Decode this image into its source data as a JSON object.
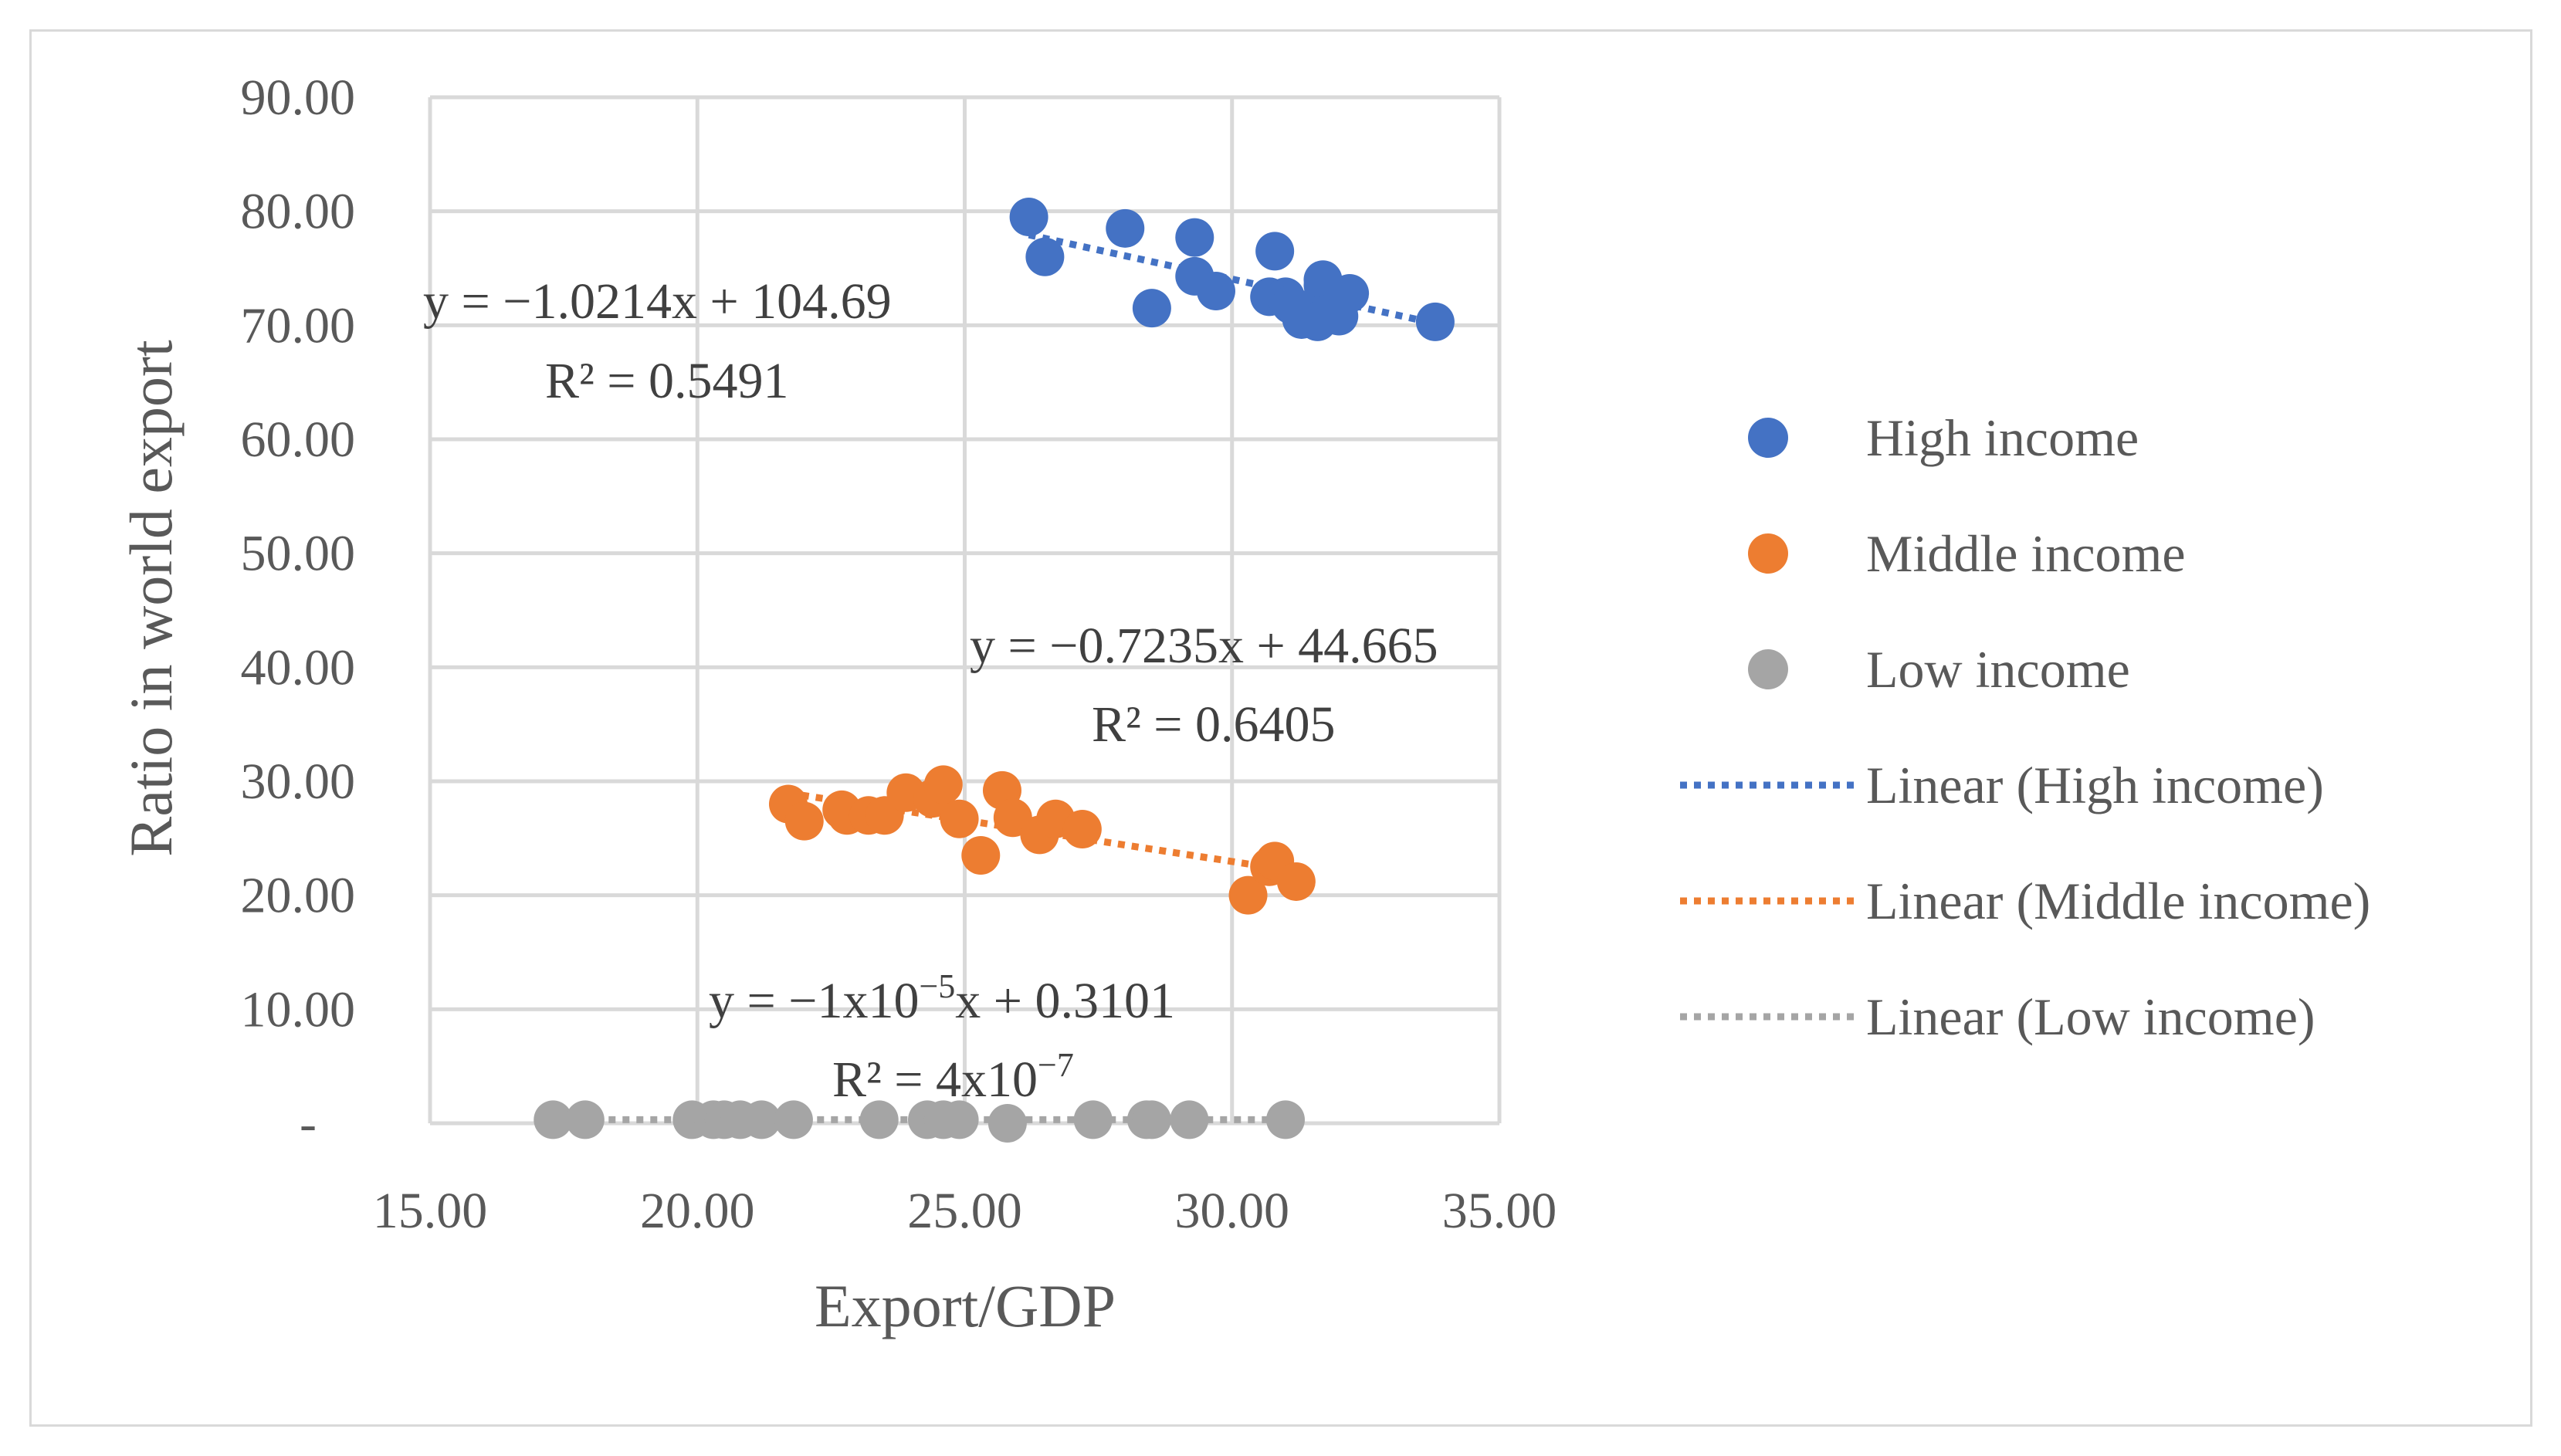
{
  "chart_data": {
    "type": "scatter",
    "title": "",
    "xlabel": "Export/GDP",
    "ylabel": "Ratio in world export",
    "xlim": [
      15,
      35
    ],
    "ylim": [
      0,
      90
    ],
    "grid": true,
    "legend_position": "right",
    "x_ticks": [
      "15.00",
      "20.00",
      "25.00",
      "30.00",
      "35.00"
    ],
    "y_ticks": [
      "-",
      "10.00",
      "20.00",
      "30.00",
      "40.00",
      "50.00",
      "60.00",
      "70.00",
      "80.00",
      "90.00"
    ],
    "series": [
      {
        "name": "High income",
        "color": "#4472c4",
        "x": [
          26.2,
          26.5,
          28.0,
          28.5,
          29.3,
          29.3,
          29.7,
          30.7,
          30.8,
          31.0,
          31.1,
          31.3,
          31.5,
          31.6,
          31.7,
          31.7,
          31.8,
          32.0,
          32.2,
          33.8
        ],
        "y": [
          79.5,
          76.0,
          78.5,
          71.5,
          77.7,
          74.3,
          73.0,
          72.5,
          76.5,
          72.5,
          71.8,
          70.5,
          71.5,
          70.3,
          73.5,
          74.0,
          71.0,
          70.8,
          72.8,
          70.3
        ],
        "trendline": {
          "label": "Linear (High income)",
          "slope": -1.0214,
          "intercept": 104.69,
          "x_range": [
            26.2,
            33.8
          ],
          "equation": "y = −1.0214x + 104.69",
          "r2": "R² = 0.5491"
        }
      },
      {
        "name": "Middle income",
        "color": "#ed7d31",
        "x": [
          21.7,
          22.0,
          22.7,
          22.8,
          23.2,
          23.5,
          23.9,
          24.4,
          24.6,
          24.9,
          25.3,
          25.7,
          25.9,
          26.4,
          26.7,
          27.2,
          30.3,
          30.7,
          30.8,
          31.2
        ],
        "y": [
          28.0,
          26.5,
          27.5,
          27.0,
          27.0,
          27.0,
          29.0,
          28.5,
          29.7,
          26.7,
          23.5,
          29.2,
          26.8,
          25.3,
          26.7,
          25.8,
          20.0,
          22.5,
          23.0,
          21.2
        ],
        "trendline": {
          "label": "Linear (Middle income)",
          "slope": -0.7235,
          "intercept": 44.665,
          "x_range": [
            21.7,
            31.2
          ],
          "equation": "y = −0.7235x + 44.665",
          "r2": "R² = 0.6405"
        }
      },
      {
        "name": "Low income",
        "color": "#a5a5a5",
        "x": [
          17.3,
          17.9,
          19.9,
          20.3,
          20.5,
          20.8,
          21.2,
          21.8,
          23.4,
          24.3,
          24.6,
          24.9,
          25.8,
          27.4,
          28.4,
          28.5,
          29.2,
          31.0
        ],
        "y": [
          0.31,
          0.31,
          0.31,
          0.31,
          0.31,
          0.31,
          0.31,
          0.31,
          0.31,
          0.31,
          0.31,
          0.31,
          0.0,
          0.31,
          0.31,
          0.31,
          0.31,
          0.31
        ],
        "trendline": {
          "label": "Linear (Low income)",
          "slope": -1e-05,
          "intercept": 0.3101,
          "x_range": [
            17.3,
            31.0
          ],
          "equation_prefix": "y = −1x10",
          "equation_exp": "−5",
          "equation_suffix": "x + 0.3101",
          "r2_prefix": "R² = 4x10",
          "r2_exp": "−7"
        }
      }
    ]
  }
}
